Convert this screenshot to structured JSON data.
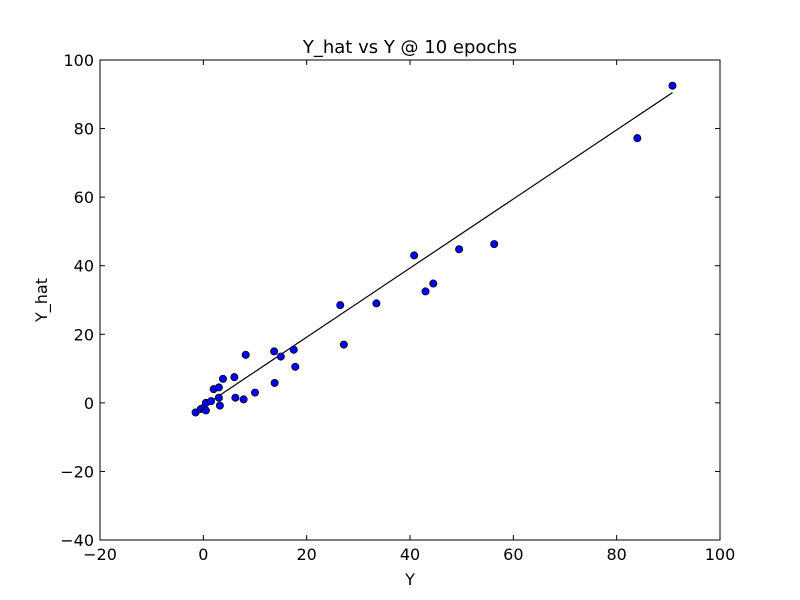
{
  "chart_data": {
    "type": "scatter",
    "title": "Y_hat vs Y @ 10 epochs",
    "xlabel": "Y",
    "ylabel": "Y_hat",
    "xlim": [
      -20,
      100
    ],
    "ylim": [
      -40,
      100
    ],
    "xticks": [
      -20,
      0,
      20,
      40,
      60,
      80,
      100
    ],
    "yticks": [
      -40,
      -20,
      0,
      20,
      40,
      60,
      80,
      100
    ],
    "grid": false,
    "point_color": "#0000ff",
    "line_color": "#000000",
    "series": [
      {
        "type": "scatter",
        "x": [
          -1.5,
          -0.5,
          0.0,
          0.5,
          0.5,
          1.5,
          2.0,
          3.0,
          3.0,
          3.2,
          3.8,
          6.0,
          6.2,
          7.8,
          8.2,
          10.0,
          13.7,
          13.8,
          15.0,
          17.5,
          17.8,
          26.5,
          27.2,
          33.5,
          40.8,
          43.0,
          44.5,
          49.5,
          56.3,
          84.0,
          90.8
        ],
        "y": [
          -2.8,
          -1.8,
          -1.5,
          0.0,
          -2.2,
          0.5,
          4.0,
          4.5,
          1.5,
          -0.8,
          7.0,
          7.5,
          1.5,
          1.0,
          14.0,
          3.0,
          15.0,
          5.8,
          13.5,
          15.5,
          10.5,
          28.5,
          17.0,
          29.0,
          43.0,
          32.5,
          34.8,
          44.8,
          46.3,
          77.2,
          92.5
        ]
      },
      {
        "type": "line",
        "x": [
          -1.5,
          90.8
        ],
        "y": [
          -2.5,
          90.5
        ]
      }
    ]
  }
}
